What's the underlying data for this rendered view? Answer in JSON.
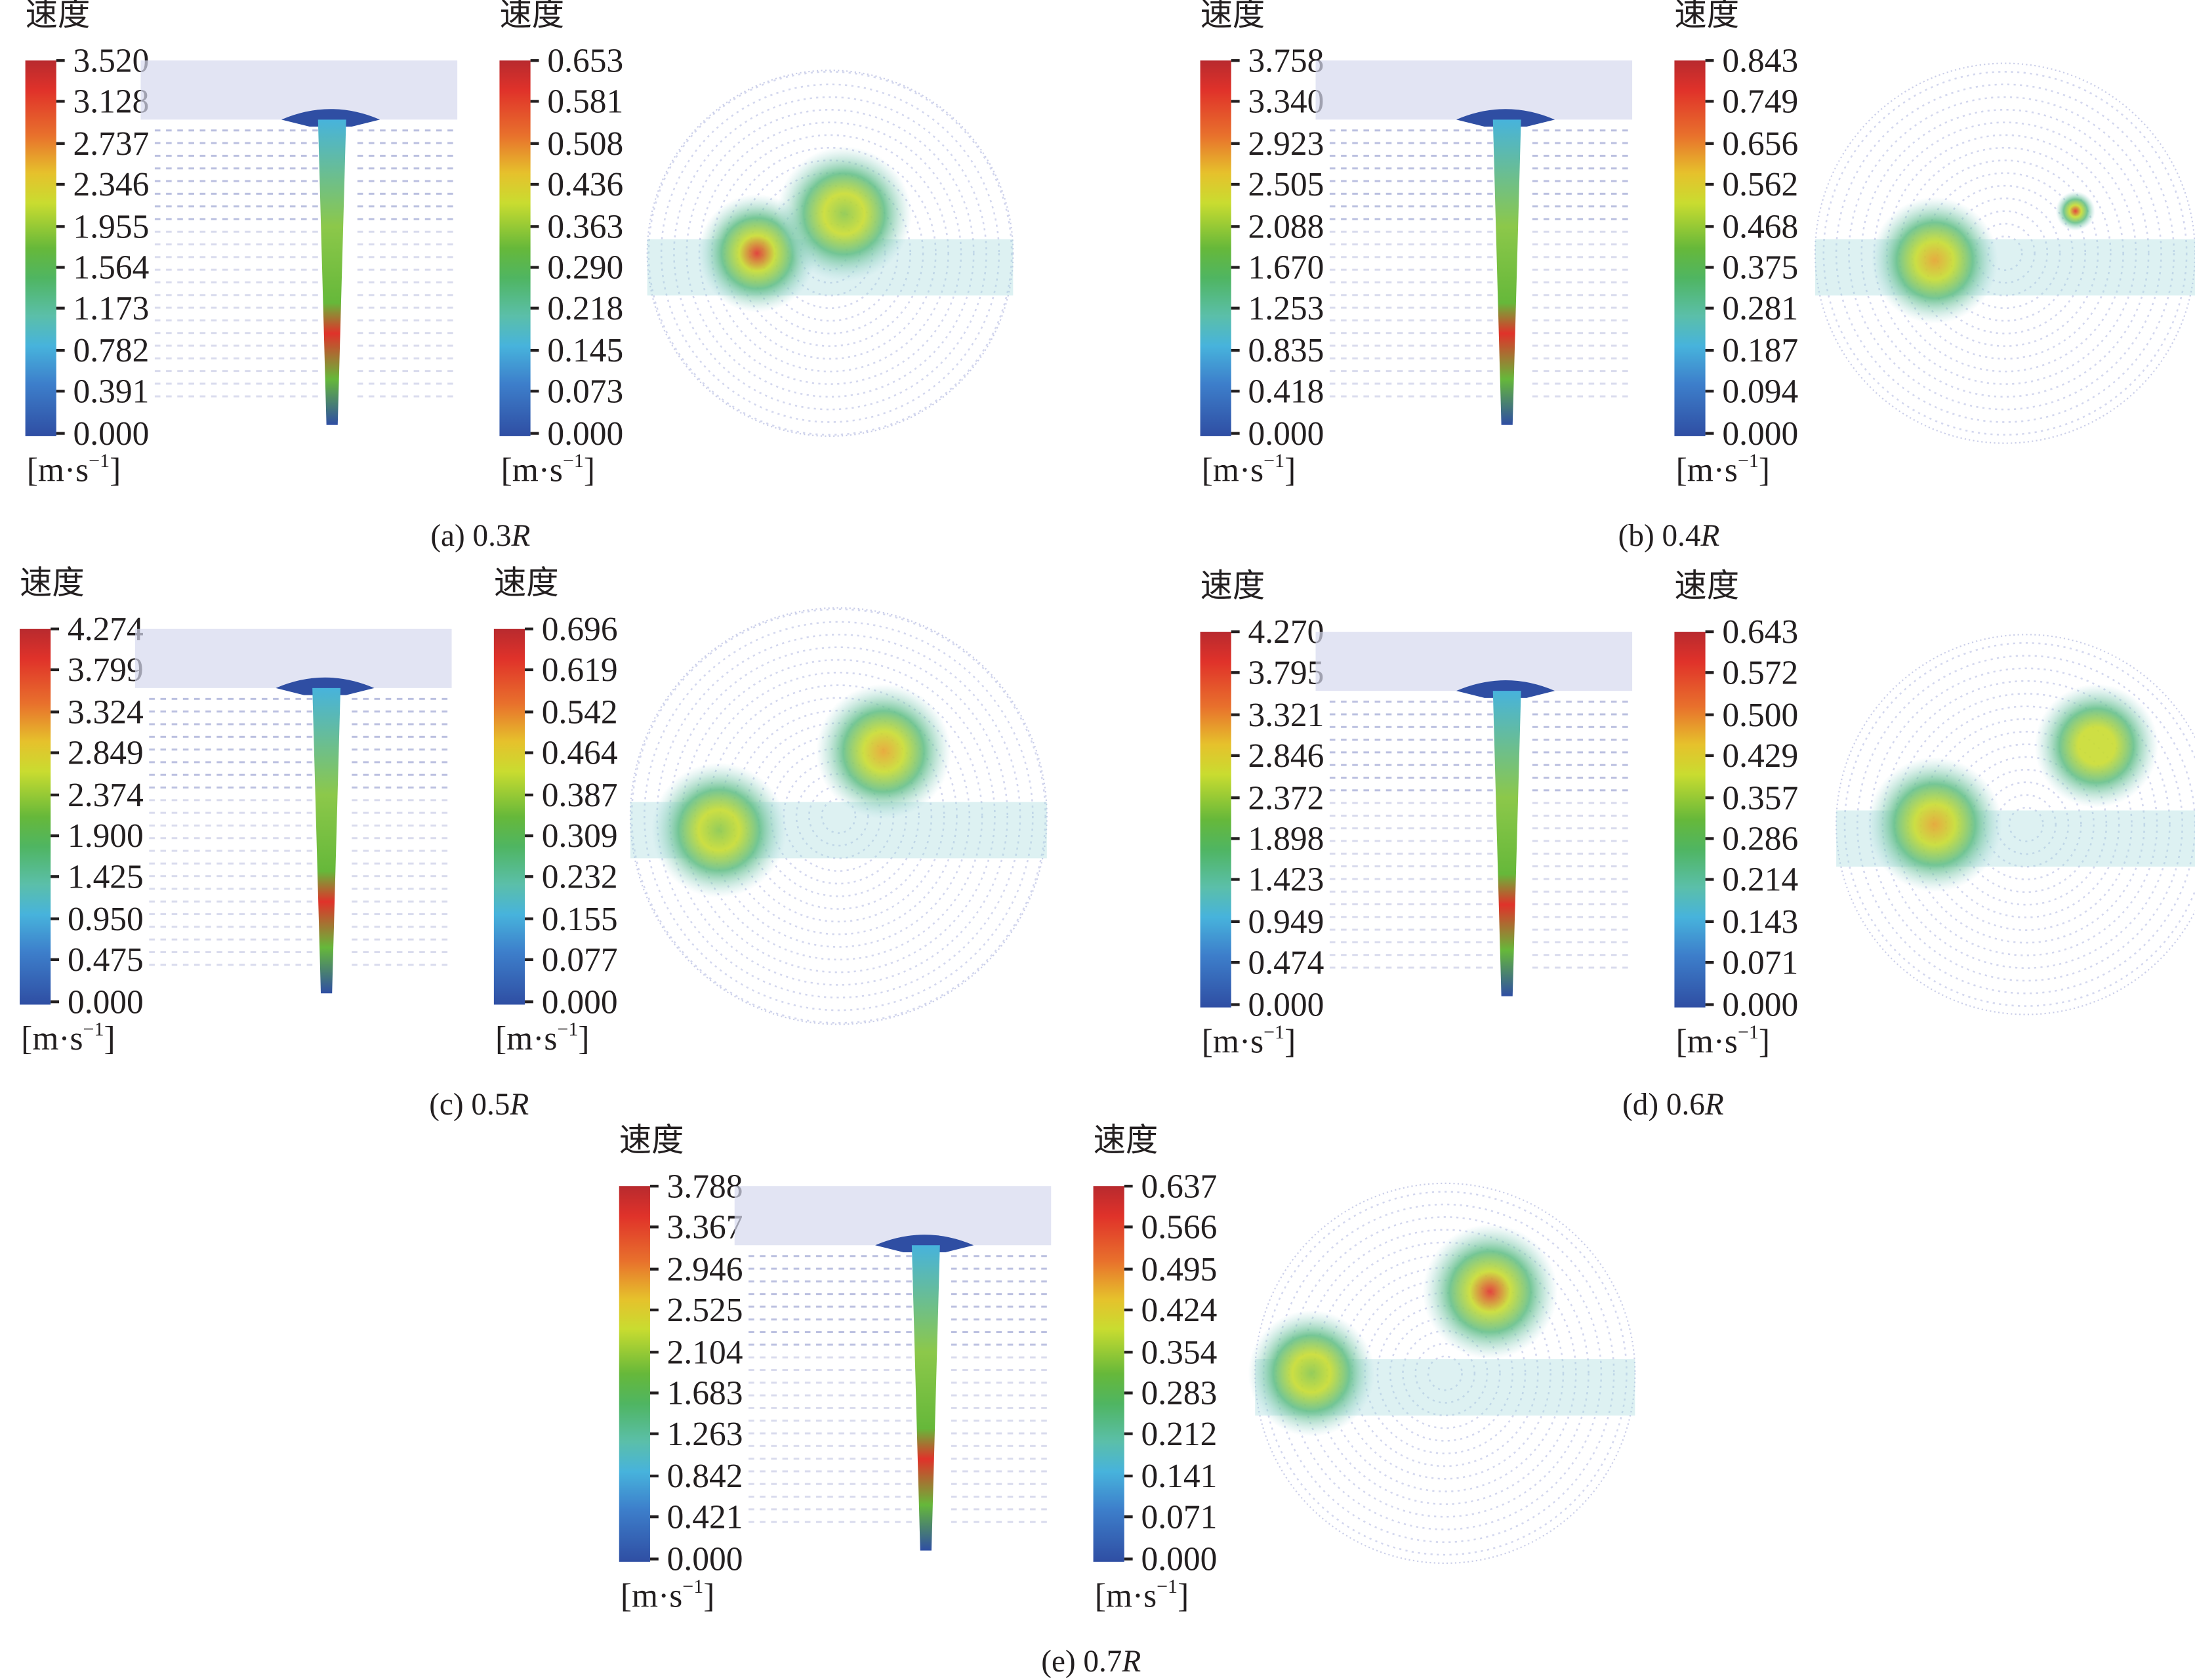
{
  "colorbar_title": "速度",
  "unit_base": "m·s",
  "unit_exp": "−1",
  "colors": {
    "high": "#e0322a",
    "mid": "#66b83a",
    "low": "#2f4ea3",
    "vector_faint": "#9aa3d6"
  },
  "panels": [
    {
      "caption_prefix": "(a) 0.3",
      "caption_var": "R",
      "side_view_ticks": [
        "3.520",
        "3.128",
        "2.737",
        "2.346",
        "1.955",
        "1.564",
        "1.173",
        "0.782",
        "0.391",
        "0.000"
      ],
      "top_view_ticks": [
        "0.653",
        "0.581",
        "0.508",
        "0.436",
        "0.363",
        "0.290",
        "0.218",
        "0.145",
        "0.073",
        "0.000"
      ]
    },
    {
      "caption_prefix": "(b) 0.4",
      "caption_var": "R",
      "side_view_ticks": [
        "3.758",
        "3.340",
        "2.923",
        "2.505",
        "2.088",
        "1.670",
        "1.253",
        "0.835",
        "0.418",
        "0.000"
      ],
      "top_view_ticks": [
        "0.843",
        "0.749",
        "0.656",
        "0.562",
        "0.468",
        "0.375",
        "0.281",
        "0.187",
        "0.094",
        "0.000"
      ]
    },
    {
      "caption_prefix": "(c) 0.5",
      "caption_var": "R",
      "side_view_ticks": [
        "4.274",
        "3.799",
        "3.324",
        "2.849",
        "2.374",
        "1.900",
        "1.425",
        "0.950",
        "0.475",
        "0.000"
      ],
      "top_view_ticks": [
        "0.696",
        "0.619",
        "0.542",
        "0.464",
        "0.387",
        "0.309",
        "0.232",
        "0.155",
        "0.077",
        "0.000"
      ]
    },
    {
      "caption_prefix": "(d) 0.6",
      "caption_var": "R",
      "side_view_ticks": [
        "4.270",
        "3.795",
        "3.321",
        "2.846",
        "2.372",
        "1.898",
        "1.423",
        "0.949",
        "0.474",
        "0.000"
      ],
      "top_view_ticks": [
        "0.643",
        "0.572",
        "0.500",
        "0.429",
        "0.357",
        "0.286",
        "0.214",
        "0.143",
        "0.071",
        "0.000"
      ]
    },
    {
      "caption_prefix": "(e) 0.7",
      "caption_var": "R",
      "side_view_ticks": [
        "3.788",
        "3.367",
        "2.946",
        "2.525",
        "2.104",
        "1.683",
        "1.263",
        "0.842",
        "0.421",
        "0.000"
      ],
      "top_view_ticks": [
        "0.637",
        "0.566",
        "0.495",
        "0.424",
        "0.354",
        "0.283",
        "0.212",
        "0.141",
        "0.071",
        "0.000"
      ]
    }
  ]
}
